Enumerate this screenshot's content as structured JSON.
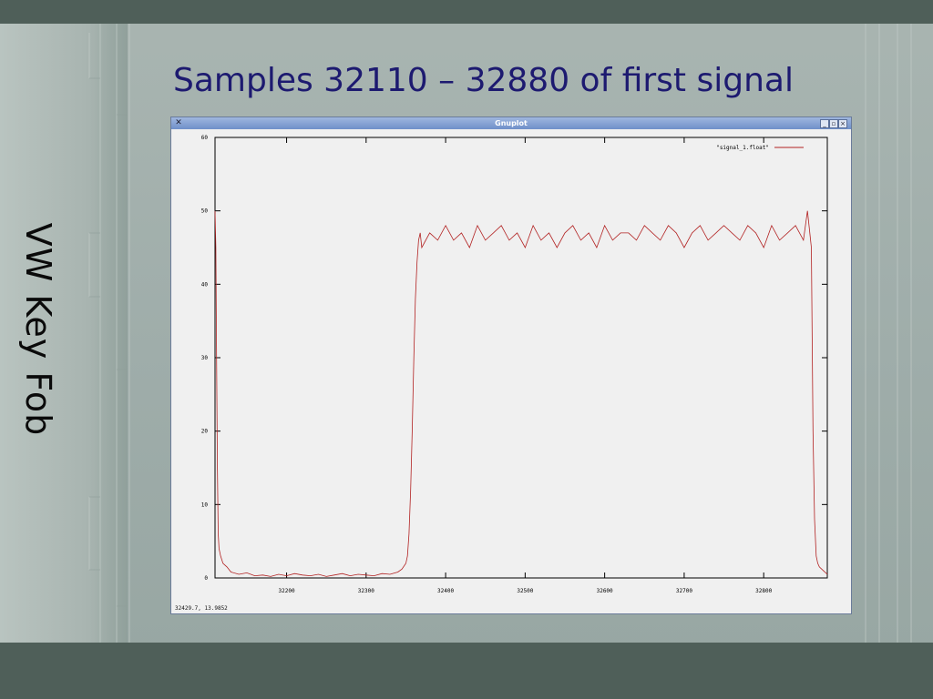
{
  "slide": {
    "title": "Samples 32110 – 32880 of first signal",
    "side_title": "VW Key Fob"
  },
  "window": {
    "title": "Gnuplot",
    "app_icon": "x-icon",
    "buttons": {
      "minimize": "_",
      "maximize": "▫",
      "close": "×"
    },
    "status": "32429.7,  13.9852"
  },
  "colors": {
    "line": "#b22222",
    "title": "#1d1a70"
  },
  "chart_data": {
    "type": "line",
    "title": "",
    "xlabel": "",
    "ylabel": "",
    "xlim": [
      32110,
      32880
    ],
    "ylim": [
      0,
      60
    ],
    "xticks": [
      32200,
      32300,
      32400,
      32500,
      32600,
      32700,
      32800
    ],
    "yticks": [
      0,
      10,
      20,
      30,
      40,
      50,
      60
    ],
    "legend": "top-right",
    "series": [
      {
        "name": "\"signal_1.float\"",
        "x": [
          32110,
          32111,
          32112,
          32113,
          32114,
          32115,
          32117,
          32120,
          32125,
          32130,
          32140,
          32150,
          32160,
          32170,
          32180,
          32190,
          32200,
          32210,
          32220,
          32230,
          32240,
          32250,
          32260,
          32270,
          32280,
          32290,
          32300,
          32310,
          32320,
          32330,
          32340,
          32345,
          32350,
          32352,
          32354,
          32356,
          32358,
          32360,
          32362,
          32364,
          32366,
          32368,
          32370,
          32380,
          32390,
          32400,
          32410,
          32420,
          32430,
          32440,
          32450,
          32460,
          32470,
          32480,
          32490,
          32500,
          32510,
          32520,
          32530,
          32540,
          32550,
          32560,
          32570,
          32580,
          32590,
          32600,
          32610,
          32620,
          32630,
          32640,
          32650,
          32660,
          32670,
          32680,
          32690,
          32700,
          32710,
          32720,
          32730,
          32740,
          32750,
          32760,
          32770,
          32780,
          32790,
          32800,
          32810,
          32820,
          32830,
          32840,
          32850,
          32855,
          32858,
          32860,
          32862,
          32864,
          32866,
          32868,
          32870,
          32875,
          32880
        ],
        "y": [
          50,
          45,
          30,
          15,
          6,
          4,
          3,
          2,
          1.5,
          0.8,
          0.5,
          0.7,
          0.3,
          0.4,
          0.2,
          0.5,
          0.3,
          0.6,
          0.4,
          0.3,
          0.5,
          0.2,
          0.4,
          0.6,
          0.3,
          0.5,
          0.4,
          0.3,
          0.6,
          0.5,
          0.8,
          1.2,
          2,
          3,
          6,
          12,
          20,
          30,
          38,
          43,
          46,
          47,
          45,
          47,
          46,
          48,
          46,
          47,
          45,
          48,
          46,
          47,
          48,
          46,
          47,
          45,
          48,
          46,
          47,
          45,
          47,
          48,
          46,
          47,
          45,
          48,
          46,
          47,
          47,
          46,
          48,
          47,
          46,
          48,
          47,
          45,
          47,
          48,
          46,
          47,
          48,
          47,
          46,
          48,
          47,
          45,
          48,
          46,
          47,
          48,
          46,
          50,
          47,
          45,
          20,
          8,
          3,
          2,
          1.5,
          1,
          0.5
        ]
      }
    ]
  }
}
